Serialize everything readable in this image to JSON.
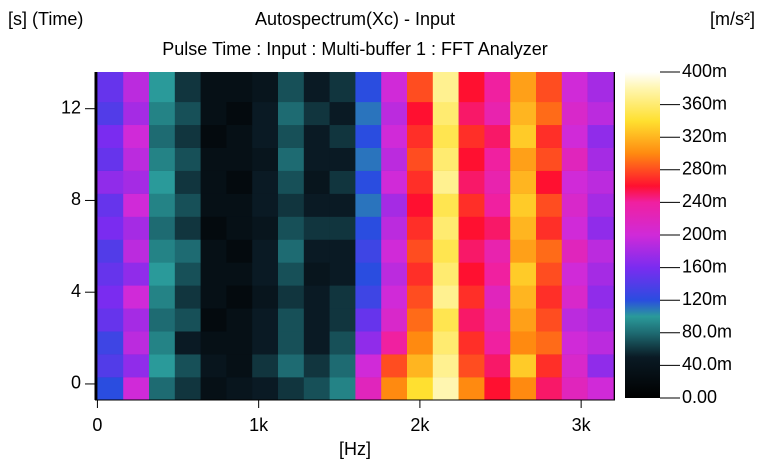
{
  "chart_data": {
    "type": "heatmap",
    "title": "Autospectrum(Xc) - Input",
    "subtitle": "Pulse Time : Input : Multi-buffer 1 : FFT Analyzer",
    "y_label": "[s] (Time)",
    "x_label": "[Hz]",
    "color_label": "[m/s²]",
    "xlim": [
      -15,
      3210
    ],
    "ylim": [
      -0.7,
      13.6
    ],
    "xticks": [
      0,
      {
        "value": 1000,
        "label": "1k"
      },
      {
        "value": 2000,
        "label": "2k"
      },
      {
        "value": 3000,
        "label": "3k"
      }
    ],
    "yticks": [
      0,
      4,
      8,
      12
    ],
    "xbins": [
      0,
      160,
      320,
      480,
      640,
      800,
      960,
      1120,
      1280,
      1440,
      1600,
      1760,
      1920,
      2080,
      2240,
      2400,
      2560,
      2720,
      2880,
      3040,
      3200
    ],
    "ybins": [
      -0.7,
      0.3,
      1.3,
      2.3,
      3.3,
      4.3,
      5.3,
      6.3,
      7.3,
      8.3,
      9.3,
      10.3,
      11.3,
      12.3,
      13.6
    ],
    "clim": [
      0,
      0.4
    ],
    "cticks": [
      {
        "value": 0,
        "label": "0.00"
      },
      {
        "value": 0.04,
        "label": "40.0m"
      },
      {
        "value": 0.08,
        "label": "80.0m"
      },
      {
        "value": 0.12,
        "label": "120m"
      },
      {
        "value": 0.16,
        "label": "160m"
      },
      {
        "value": 0.2,
        "label": "200m"
      },
      {
        "value": 0.24,
        "label": "240m"
      },
      {
        "value": 0.28,
        "label": "280m"
      },
      {
        "value": 0.32,
        "label": "320m"
      },
      {
        "value": 0.36,
        "label": "360m"
      },
      {
        "value": 0.4,
        "label": "400m"
      }
    ],
    "colormap": [
      {
        "value": 0,
        "color": "#000000"
      },
      {
        "value": 0.05,
        "color": "#0a1a24"
      },
      {
        "value": 0.08,
        "color": "#1e6b72"
      },
      {
        "value": 0.1,
        "color": "#2a9a9a"
      },
      {
        "value": 0.12,
        "color": "#2a4de0"
      },
      {
        "value": 0.16,
        "color": "#7a2cf0"
      },
      {
        "value": 0.2,
        "color": "#d02ad8"
      },
      {
        "value": 0.24,
        "color": "#f020a0"
      },
      {
        "value": 0.26,
        "color": "#ff1030"
      },
      {
        "value": 0.3,
        "color": "#ff8a10"
      },
      {
        "value": 0.34,
        "color": "#ffe030"
      },
      {
        "value": 0.38,
        "color": "#fff6b0"
      },
      {
        "value": 0.4,
        "color": "#ffffff"
      }
    ],
    "values": [
      [
        0.12,
        0.2,
        0.08,
        0.06,
        0.03,
        0.04,
        0.05,
        0.06,
        0.07,
        0.09,
        0.22,
        0.3,
        0.34,
        0.38,
        0.3,
        0.26,
        0.3,
        0.25,
        0.22,
        0.2
      ],
      [
        0.14,
        0.17,
        0.1,
        0.07,
        0.04,
        0.03,
        0.06,
        0.08,
        0.06,
        0.08,
        0.2,
        0.28,
        0.32,
        0.37,
        0.28,
        0.25,
        0.33,
        0.27,
        0.21,
        0.17
      ],
      [
        0.13,
        0.19,
        0.09,
        0.05,
        0.03,
        0.03,
        0.05,
        0.07,
        0.05,
        0.07,
        0.17,
        0.24,
        0.3,
        0.36,
        0.27,
        0.24,
        0.3,
        0.29,
        0.2,
        0.19
      ],
      [
        0.15,
        0.18,
        0.08,
        0.07,
        0.02,
        0.03,
        0.05,
        0.07,
        0.05,
        0.06,
        0.15,
        0.21,
        0.29,
        0.35,
        0.25,
        0.23,
        0.31,
        0.28,
        0.19,
        0.18
      ],
      [
        0.16,
        0.2,
        0.09,
        0.06,
        0.03,
        0.02,
        0.04,
        0.06,
        0.05,
        0.06,
        0.13,
        0.2,
        0.28,
        0.37,
        0.27,
        0.22,
        0.32,
        0.27,
        0.21,
        0.17
      ],
      [
        0.15,
        0.17,
        0.1,
        0.07,
        0.03,
        0.03,
        0.05,
        0.07,
        0.04,
        0.05,
        0.12,
        0.19,
        0.27,
        0.36,
        0.26,
        0.24,
        0.33,
        0.28,
        0.2,
        0.18
      ],
      [
        0.14,
        0.19,
        0.09,
        0.08,
        0.03,
        0.02,
        0.05,
        0.08,
        0.05,
        0.05,
        0.13,
        0.2,
        0.28,
        0.35,
        0.25,
        0.23,
        0.31,
        0.29,
        0.22,
        0.19
      ],
      [
        0.16,
        0.18,
        0.08,
        0.06,
        0.02,
        0.03,
        0.04,
        0.07,
        0.06,
        0.06,
        0.12,
        0.19,
        0.27,
        0.36,
        0.26,
        0.25,
        0.32,
        0.27,
        0.2,
        0.17
      ],
      [
        0.15,
        0.2,
        0.09,
        0.07,
        0.03,
        0.03,
        0.05,
        0.06,
        0.05,
        0.05,
        0.11,
        0.18,
        0.26,
        0.35,
        0.27,
        0.24,
        0.33,
        0.28,
        0.21,
        0.18
      ],
      [
        0.17,
        0.18,
        0.1,
        0.06,
        0.03,
        0.02,
        0.05,
        0.07,
        0.04,
        0.06,
        0.12,
        0.2,
        0.27,
        0.37,
        0.25,
        0.23,
        0.32,
        0.26,
        0.2,
        0.19
      ],
      [
        0.15,
        0.19,
        0.09,
        0.07,
        0.03,
        0.03,
        0.04,
        0.08,
        0.05,
        0.05,
        0.11,
        0.19,
        0.28,
        0.36,
        0.26,
        0.24,
        0.31,
        0.28,
        0.22,
        0.18
      ],
      [
        0.16,
        0.2,
        0.08,
        0.06,
        0.02,
        0.03,
        0.05,
        0.07,
        0.05,
        0.06,
        0.12,
        0.2,
        0.27,
        0.35,
        0.27,
        0.25,
        0.33,
        0.27,
        0.2,
        0.17
      ],
      [
        0.14,
        0.18,
        0.09,
        0.07,
        0.03,
        0.02,
        0.05,
        0.08,
        0.06,
        0.05,
        0.11,
        0.19,
        0.26,
        0.36,
        0.25,
        0.23,
        0.32,
        0.29,
        0.21,
        0.19
      ],
      [
        0.15,
        0.19,
        0.1,
        0.06,
        0.03,
        0.03,
        0.04,
        0.07,
        0.05,
        0.06,
        0.12,
        0.2,
        0.28,
        0.37,
        0.26,
        0.24,
        0.31,
        0.28,
        0.2,
        0.18
      ]
    ]
  }
}
